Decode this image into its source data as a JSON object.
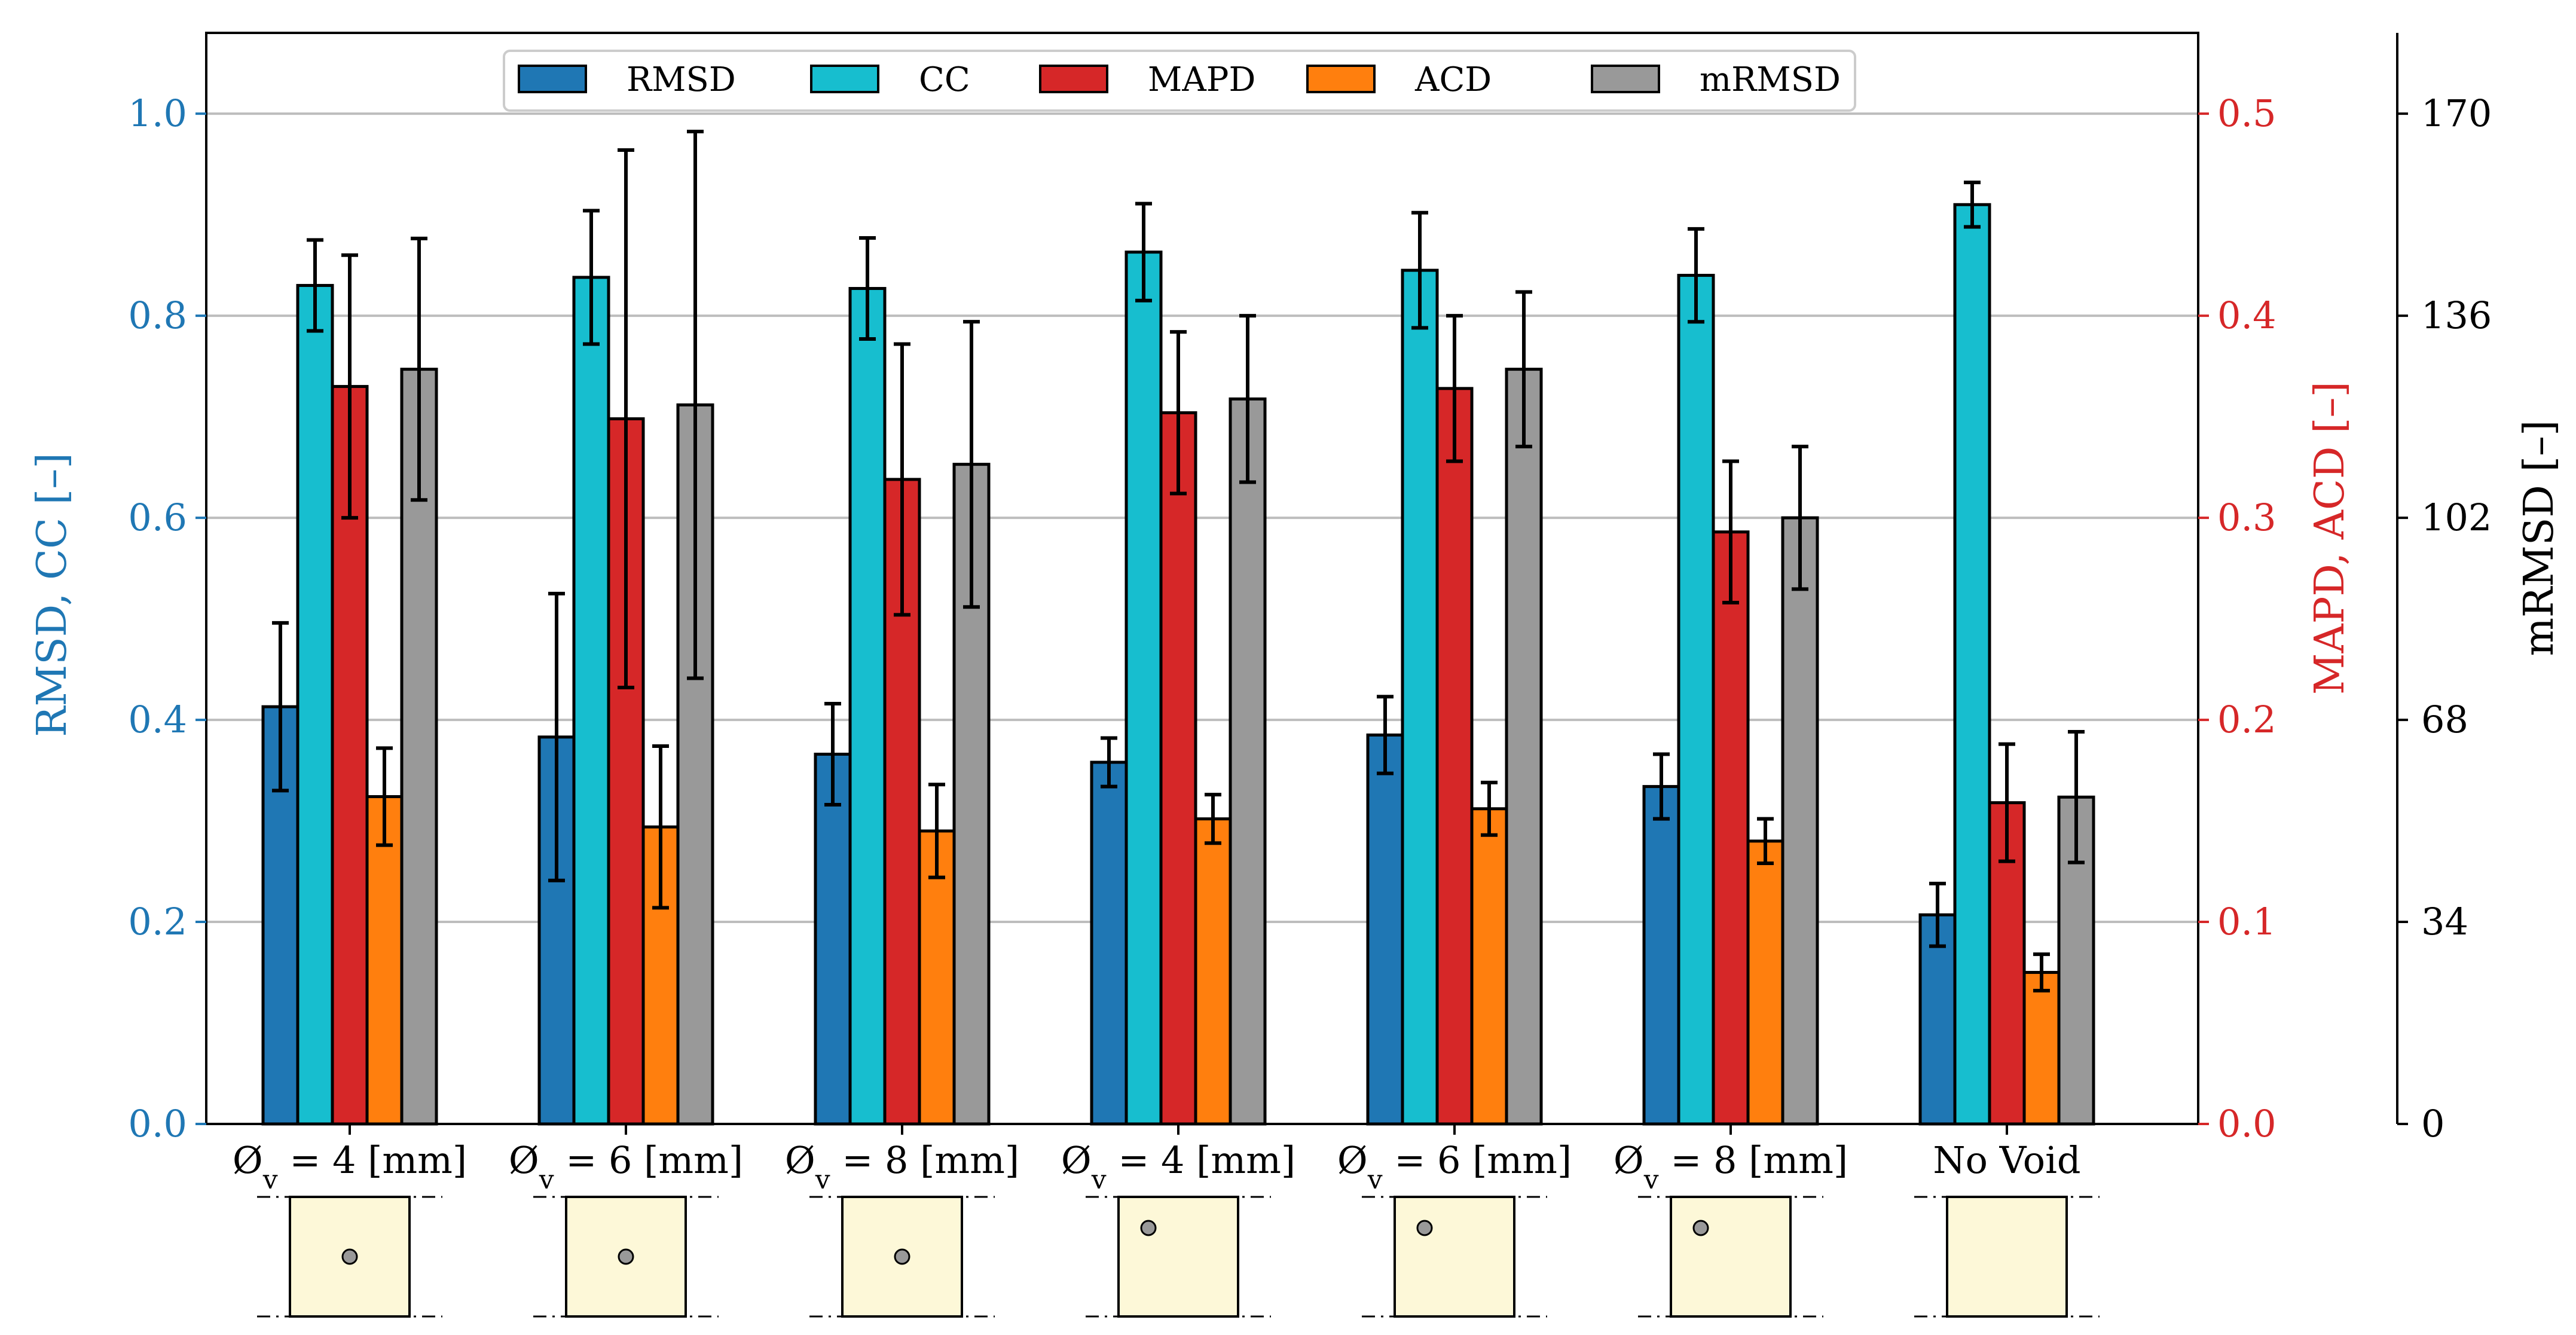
{
  "chart_data": {
    "type": "bar",
    "categories": [
      {
        "label": "Ø",
        "sub": "v",
        "rest": " = 4 [mm]",
        "void_position": "center",
        "void_diameter_mm": 4
      },
      {
        "label": "Ø",
        "sub": "v",
        "rest": " = 6 [mm]",
        "void_position": "center",
        "void_diameter_mm": 6
      },
      {
        "label": "Ø",
        "sub": "v",
        "rest": " = 8 [mm]",
        "void_position": "center",
        "void_diameter_mm": 8
      },
      {
        "label": "Ø",
        "sub": "v",
        "rest": " = 4 [mm]",
        "void_position": "top-left",
        "void_diameter_mm": 4
      },
      {
        "label": "Ø",
        "sub": "v",
        "rest": " = 6 [mm]",
        "void_position": "top-left",
        "void_diameter_mm": 6
      },
      {
        "label": "Ø",
        "sub": "v",
        "rest": " = 8 [mm]",
        "void_position": "top-left",
        "void_diameter_mm": 8
      },
      {
        "label": "No Void",
        "sub": "",
        "rest": "",
        "void_position": "none",
        "void_diameter_mm": 0
      }
    ],
    "series": [
      {
        "name": "RMSD",
        "axis": "left",
        "color": "#1f77b4",
        "values": [
          0.413,
          0.383,
          0.366,
          0.358,
          0.385,
          0.334,
          0.207
        ],
        "errors": [
          0.083,
          0.142,
          0.05,
          0.024,
          0.038,
          0.032,
          0.031
        ]
      },
      {
        "name": "CC",
        "axis": "left",
        "color": "#17becf",
        "values": [
          0.83,
          0.838,
          0.827,
          0.863,
          0.845,
          0.84,
          0.91
        ],
        "errors": [
          0.045,
          0.066,
          0.05,
          0.048,
          0.057,
          0.046,
          0.022
        ]
      },
      {
        "name": "MAPD",
        "axis": "right1",
        "color": "#d62728",
        "values": [
          0.365,
          0.349,
          0.319,
          0.352,
          0.364,
          0.293,
          0.159
        ],
        "errors": [
          0.065,
          0.133,
          0.067,
          0.04,
          0.036,
          0.035,
          0.029
        ]
      },
      {
        "name": "ACD",
        "axis": "right1",
        "color": "#ff7f0e",
        "values": [
          0.162,
          0.147,
          0.145,
          0.151,
          0.156,
          0.14,
          0.075
        ],
        "errors": [
          0.024,
          0.04,
          0.023,
          0.012,
          0.013,
          0.011,
          0.009
        ]
      },
      {
        "name": "mRMSD",
        "axis": "right2",
        "color": "#999999",
        "values": [
          127,
          121,
          111,
          122,
          127,
          102,
          55
        ],
        "errors": [
          22,
          46,
          24,
          14,
          13,
          12,
          11
        ]
      }
    ],
    "axes": {
      "left": {
        "label": "RMSD, CC [–]",
        "color": "#1f77b4",
        "ylim": [
          0.0,
          1.08
        ],
        "ticks": [
          "0.0",
          "0.2",
          "0.4",
          "0.6",
          "0.8",
          "1.0"
        ],
        "tick_values": [
          0,
          0.2,
          0.4,
          0.6,
          0.8,
          1.0
        ]
      },
      "right1": {
        "label": "MAPD, ACD [–]",
        "color": "#d62728",
        "ylim": [
          0.0,
          0.54
        ],
        "ticks": [
          "0.0",
          "0.1",
          "0.2",
          "0.3",
          "0.4",
          "0.5"
        ],
        "tick_values": [
          0,
          0.1,
          0.2,
          0.3,
          0.4,
          0.5
        ]
      },
      "right2": {
        "label": "mRMSD  [–]",
        "color": "#000000",
        "ylim": [
          0,
          183.6
        ],
        "ticks": [
          "0",
          "34",
          "68",
          "102",
          "136",
          "170"
        ],
        "tick_values": [
          0,
          34,
          68,
          102,
          136,
          170
        ]
      }
    },
    "grid": "horizontal",
    "legend": "top-center"
  }
}
